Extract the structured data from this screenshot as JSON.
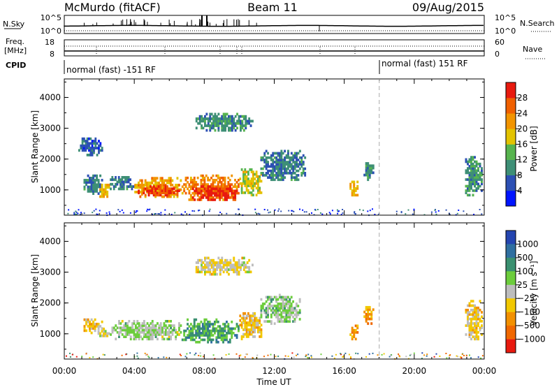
{
  "header": {
    "title": "McMurdo (fitACF)",
    "beam": "Beam 11",
    "date": "09/Aug/2015"
  },
  "summary_labels": {
    "nsky": "N.Sky",
    "nsearch": "N.Search",
    "freq_line1": "Freq.",
    "freq_line2": "[MHz]",
    "nave": "Nave",
    "cpid": "CPID",
    "noise_ticks_left": [
      "10^5",
      "10^0"
    ],
    "noise_ticks_right": [
      "10^5",
      "10^0"
    ],
    "freq_ticks": [
      "18",
      "8"
    ],
    "nave_ticks": [
      "60",
      "0"
    ]
  },
  "cpid_segments": [
    {
      "label": "normal (fast) -151 RF",
      "start_hour": 0
    },
    {
      "label": "normal (fast) 151 RF",
      "start_hour": 18
    }
  ],
  "chart_data": [
    {
      "type": "heatmap",
      "panel": "power",
      "ylabel": "Slant Range [km]",
      "xlabel": "Time UT",
      "x_ticks": [
        "00:00",
        "04:00",
        "08:00",
        "12:00",
        "16:00",
        "20:00",
        "00:00"
      ],
      "xlim_hours": [
        0,
        24
      ],
      "ylim_km": [
        180,
        4600
      ],
      "y_ticks": [
        1000,
        2000,
        3000,
        4000
      ],
      "colorbar": {
        "label": "Power [dB]",
        "ticks": [
          "4",
          "8",
          "12",
          "16",
          "20",
          "24",
          "28"
        ],
        "range": [
          0,
          30
        ],
        "colors": [
          "#0014ff",
          "#2c50b4",
          "#3e8f76",
          "#57b44e",
          "#e3c300",
          "#f29400",
          "#f06000",
          "#e81a0f"
        ]
      },
      "scatter_regions": [
        {
          "t": [
            1.1,
            2.2
          ],
          "r": [
            850,
            1500
          ],
          "mean_value": 8
        },
        {
          "t": [
            1.9,
            2.6
          ],
          "r": [
            750,
            1200
          ],
          "mean_value": 18
        },
        {
          "t": [
            2.6,
            4.0
          ],
          "r": [
            1000,
            1450
          ],
          "mean_value": 8
        },
        {
          "t": [
            4.0,
            6.7
          ],
          "r": [
            750,
            1420
          ],
          "mean_value": 20
        },
        {
          "t": [
            4.2,
            6.6
          ],
          "r": [
            800,
            1150
          ],
          "mean_value": 26
        },
        {
          "t": [
            6.7,
            10.0
          ],
          "r": [
            650,
            1500
          ],
          "mean_value": 22
        },
        {
          "t": [
            7.3,
            10.0
          ],
          "r": [
            650,
            1150
          ],
          "mean_value": 28
        },
        {
          "t": [
            10.0,
            11.3
          ],
          "r": [
            800,
            1700
          ],
          "mean_value": 16
        },
        {
          "t": [
            11.2,
            13.8
          ],
          "r": [
            1300,
            2300
          ],
          "mean_value": 8
        },
        {
          "t": [
            7.5,
            10.8
          ],
          "r": [
            2900,
            3500
          ],
          "mean_value": 10
        },
        {
          "t": [
            0.8,
            2.2
          ],
          "r": [
            2100,
            2700
          ],
          "mean_value": 6
        },
        {
          "t": [
            16.3,
            16.8
          ],
          "r": [
            800,
            1300
          ],
          "mean_value": 18
        },
        {
          "t": [
            17.1,
            17.7
          ],
          "r": [
            1300,
            1900
          ],
          "mean_value": 10
        },
        {
          "t": [
            22.9,
            23.9
          ],
          "r": [
            800,
            2100
          ],
          "mean_value": 10
        }
      ]
    },
    {
      "type": "heatmap",
      "panel": "velocity",
      "ylabel": "Slant Range [km]",
      "xlabel": "Time UT",
      "x_ticks": [
        "00:00",
        "04:00",
        "08:00",
        "12:00",
        "16:00",
        "20:00",
        "00:00"
      ],
      "xlim_hours": [
        0,
        24
      ],
      "ylim_km": [
        180,
        4600
      ],
      "y_ticks": [
        1000,
        2000,
        3000,
        4000
      ],
      "colorbar": {
        "label": "Velocity [m s⁻¹]",
        "ticks": [
          "1000",
          "500",
          "100",
          "25",
          "−25",
          "−100",
          "−500",
          "−1000"
        ],
        "range": [
          -1250,
          1250
        ],
        "colors": [
          "#2445b0",
          "#2f6fa0",
          "#3a9070",
          "#6ccd3c",
          "#bdbdbd",
          "#f2c800",
          "#f29000",
          "#f06800",
          "#e81a0f"
        ]
      },
      "scatter_regions": [
        {
          "t": [
            1.1,
            2.2
          ],
          "r": [
            1000,
            1500
          ],
          "mean_value": -300
        },
        {
          "t": [
            1.9,
            2.6
          ],
          "r": [
            900,
            1200
          ],
          "mean_value": -30
        },
        {
          "t": [
            2.6,
            6.7
          ],
          "r": [
            800,
            1450
          ],
          "mean_value": 150
        },
        {
          "t": [
            6.7,
            10.0
          ],
          "r": [
            700,
            1500
          ],
          "mean_value": 500
        },
        {
          "t": [
            10.0,
            11.3
          ],
          "r": [
            800,
            1700
          ],
          "mean_value": -300
        },
        {
          "t": [
            11.2,
            13.5
          ],
          "r": [
            1300,
            2300
          ],
          "mean_value": 200
        },
        {
          "t": [
            7.5,
            10.8
          ],
          "r": [
            2900,
            3500
          ],
          "mean_value": -100
        },
        {
          "t": [
            16.3,
            16.8
          ],
          "r": [
            800,
            1300
          ],
          "mean_value": -500
        },
        {
          "t": [
            17.1,
            17.7
          ],
          "r": [
            1300,
            1900
          ],
          "mean_value": -500
        },
        {
          "t": [
            22.9,
            23.9
          ],
          "r": [
            800,
            2100
          ],
          "mean_value": -200
        }
      ]
    }
  ]
}
